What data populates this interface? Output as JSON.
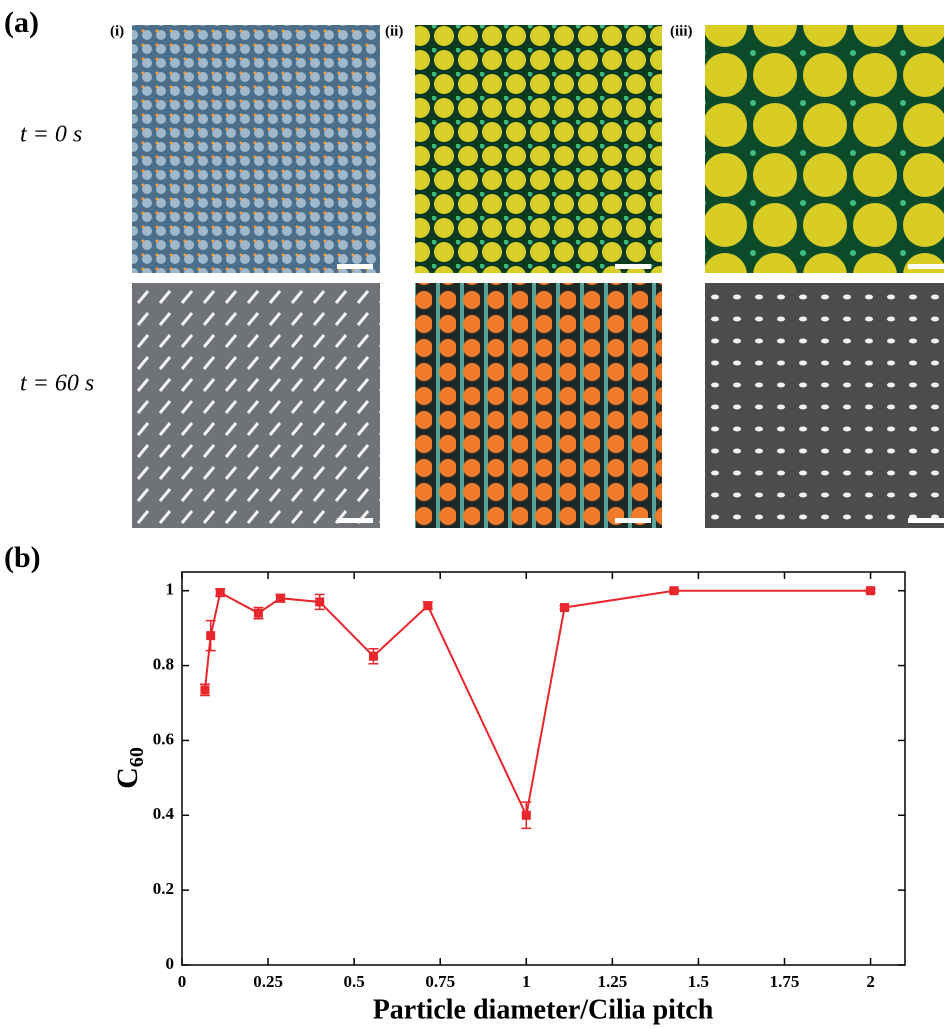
{
  "figure": {
    "panel_a": "(a)",
    "panel_b": "(b)",
    "columns": [
      "(i)",
      "(ii)",
      "(iii)"
    ],
    "rows": [
      "t = 0 s",
      "t = 60 s"
    ]
  },
  "chart_data": {
    "type": "line",
    "xlabel": "Particle diameter/Cilia pitch",
    "ylabel": "C",
    "ylabel_sub": "60",
    "x": [
      0.0667,
      0.0833,
      0.111,
      0.222,
      0.286,
      0.4,
      0.556,
      0.714,
      1,
      1.111,
      1.429,
      2
    ],
    "series": [
      {
        "color": "#e8262b",
        "values": [
          0.735,
          0.88,
          0.995,
          0.94,
          0.98,
          0.97,
          0.825,
          0.96,
          0.4,
          0.955,
          1.0,
          1.0
        ],
        "errors": [
          0.015,
          0.04,
          0.01,
          0.015,
          0.01,
          0.02,
          0.02,
          0.01,
          0.035,
          0.005,
          0.005,
          0.005
        ]
      }
    ],
    "xlim": [
      0,
      2.1
    ],
    "ylim": [
      0,
      1.05
    ],
    "xticks": [
      0,
      0.25,
      0.5,
      0.75,
      1,
      1.25,
      1.5,
      1.75,
      2
    ],
    "yticks": [
      0,
      0.2,
      0.4,
      0.6,
      0.8,
      1
    ]
  }
}
